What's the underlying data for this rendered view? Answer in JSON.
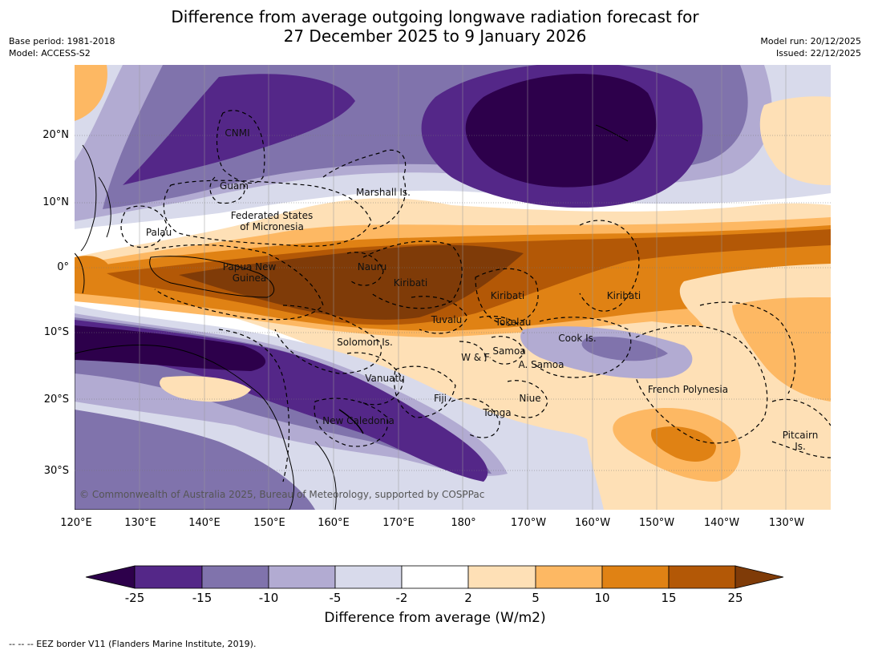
{
  "title_line1": "Difference from average outgoing longwave radiation forecast for",
  "title_line2": "27 December 2025 to 9 January 2026",
  "base_period": "Base period: 1981-2018",
  "model": "Model: ACCESS-S2",
  "model_run": "Model run: 20/12/2025",
  "issued": "Issued: 22/12/2025",
  "copyright": "© Commonwealth of Australia 2025, Bureau of Meteorology, supported by COSPPac",
  "legend": {
    "label": "Difference from average (W/m2)",
    "ticks": [
      "-25",
      "-15",
      "-10",
      "-5",
      "-2",
      "2",
      "5",
      "10",
      "15",
      "25"
    ],
    "colors": [
      "#2d004b",
      "#542788",
      "#8073ac",
      "#b2abd2",
      "#d8daeb",
      "#ffffff",
      "#fee0b6",
      "#fdb863",
      "#e08214",
      "#b35806",
      "#7f3b08"
    ]
  },
  "axes": {
    "lat_labels": [
      "20°N",
      "10°N",
      "0°",
      "10°S",
      "20°S",
      "30°S"
    ],
    "lon_labels": [
      "120°E",
      "130°E",
      "140°E",
      "150°E",
      "160°E",
      "170°E",
      "180°",
      "170°W",
      "160°W",
      "150°W",
      "140°W",
      "130°W"
    ]
  },
  "places": [
    {
      "name": "CNMI",
      "text": "CNMI"
    },
    {
      "name": "Guam",
      "text": "Guam"
    },
    {
      "name": "Marshall Is.",
      "text": "Marshall Is."
    },
    {
      "name": "Federated States of Micronesia",
      "text": "Federated States"
    },
    {
      "name": "Federated States of Micronesia 2",
      "text": "of Micronesia"
    },
    {
      "name": "Palau",
      "text": "Palau"
    },
    {
      "name": "Papua New Guinea",
      "text": "Papua New"
    },
    {
      "name": "Papua New Guinea 2",
      "text": "Guinea"
    },
    {
      "name": "Nauru",
      "text": "Nauru"
    },
    {
      "name": "Kiribati W",
      "text": "Kiribati"
    },
    {
      "name": "Kiribati C",
      "text": "Kiribati"
    },
    {
      "name": "Kiribati E",
      "text": "Kiribati"
    },
    {
      "name": "Tuvalu",
      "text": "Tuvalu"
    },
    {
      "name": "Tokelau",
      "text": "Tokelau"
    },
    {
      "name": "Cook Is.",
      "text": "Cook Is."
    },
    {
      "name": "Solomon Is.",
      "text": "Solomon Is."
    },
    {
      "name": "Samoa",
      "text": "Samoa"
    },
    {
      "name": "W & F",
      "text": "W & F"
    },
    {
      "name": "A. Samoa",
      "text": "A. Samoa"
    },
    {
      "name": "Vanuatu",
      "text": "Vanuatu"
    },
    {
      "name": "Fiji",
      "text": "Fiji"
    },
    {
      "name": "Niue",
      "text": "Niue"
    },
    {
      "name": "French Polynesia",
      "text": "French Polynesia"
    },
    {
      "name": "Tonga",
      "text": "Tonga"
    },
    {
      "name": "New Caledonia",
      "text": "New Caledonia"
    },
    {
      "name": "Pitcairn Is.",
      "text": "Pitcairn"
    },
    {
      "name": "Pitcairn Is. 2",
      "text": "Is."
    }
  ],
  "footnote": "-- -- -- EEZ border V11 (Flanders Marine Institute, 2019)."
}
